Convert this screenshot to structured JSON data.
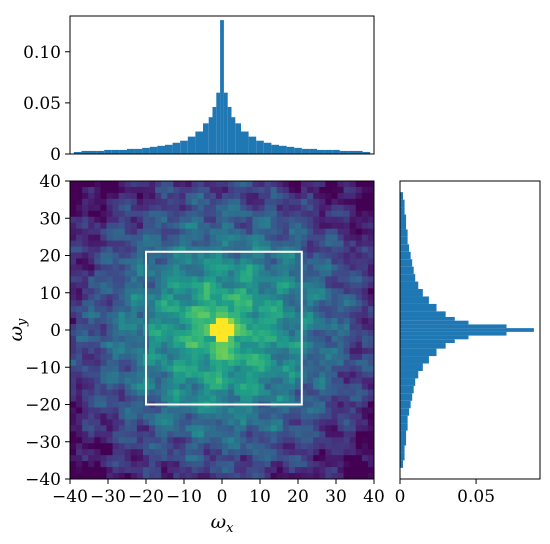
{
  "chart_data": [
    {
      "id": "top_histogram",
      "type": "bar",
      "orientation": "vertical",
      "x_range": [
        -40,
        40
      ],
      "ylim": [
        0,
        0.135
      ],
      "yticks": [
        0,
        0.05,
        0.1
      ],
      "ytick_labels": [
        "0",
        "0.05",
        "0.10"
      ],
      "bin_centers": [
        -38,
        -36,
        -34,
        -32,
        -30,
        -28,
        -26,
        -24,
        -22,
        -20,
        -18,
        -16,
        -14,
        -12,
        -10,
        -8,
        -6,
        -4,
        -3,
        -2,
        -1,
        0,
        1,
        2,
        3,
        4,
        6,
        8,
        10,
        12,
        14,
        16,
        18,
        20,
        22,
        24,
        26,
        28,
        30,
        32,
        34,
        36,
        38
      ],
      "values": [
        0.002,
        0.003,
        0.003,
        0.003,
        0.004,
        0.004,
        0.004,
        0.005,
        0.005,
        0.006,
        0.007,
        0.008,
        0.009,
        0.011,
        0.013,
        0.017,
        0.022,
        0.03,
        0.036,
        0.046,
        0.06,
        0.131,
        0.06,
        0.046,
        0.036,
        0.03,
        0.022,
        0.017,
        0.013,
        0.011,
        0.009,
        0.008,
        0.007,
        0.006,
        0.005,
        0.005,
        0.004,
        0.004,
        0.004,
        0.003,
        0.003,
        0.003,
        0.002
      ],
      "color": "#1f77b4"
    },
    {
      "id": "heatmap",
      "type": "heatmap",
      "xlabel": "ω",
      "xlabel_sub": "x",
      "ylabel": "ω",
      "ylabel_sub": "y",
      "xlim": [
        -40,
        40
      ],
      "ylim": [
        -40,
        40
      ],
      "xticks": [
        -40,
        -30,
        -20,
        -10,
        0,
        10,
        20,
        30,
        40
      ],
      "xtick_labels": [
        "−40",
        "−30",
        "−20",
        "−10",
        "0",
        "10",
        "20",
        "30",
        "40"
      ],
      "yticks": [
        -40,
        -30,
        -20,
        -10,
        0,
        10,
        20,
        30,
        40
      ],
      "ytick_labels": [
        "−40",
        "−30",
        "−20",
        "−10",
        "0",
        "10",
        "20",
        "30",
        "40"
      ],
      "colormap": "viridis",
      "box": {
        "x0": -20,
        "x1": 21,
        "y0": -20,
        "y1": 21,
        "color": "#ffffff"
      }
    },
    {
      "id": "right_histogram",
      "type": "bar",
      "orientation": "horizontal",
      "y_range": [
        -40,
        40
      ],
      "xlim": [
        0,
        0.092
      ],
      "xticks": [
        0,
        0.05
      ],
      "xtick_labels": [
        "0",
        "0.05"
      ],
      "bin_centers": [
        -36,
        -34,
        -32,
        -30,
        -28,
        -26,
        -24,
        -22,
        -20,
        -18,
        -16,
        -14,
        -12,
        -10,
        -8,
        -6,
        -4,
        -3,
        -2,
        -1,
        0,
        1,
        2,
        3,
        4,
        6,
        8,
        10,
        12,
        14,
        16,
        18,
        20,
        22,
        24,
        26,
        28,
        30,
        32,
        34,
        36
      ],
      "values": [
        0.002,
        0.003,
        0.003,
        0.004,
        0.004,
        0.005,
        0.005,
        0.006,
        0.007,
        0.008,
        0.009,
        0.01,
        0.012,
        0.015,
        0.019,
        0.024,
        0.03,
        0.036,
        0.045,
        0.07,
        0.088,
        0.07,
        0.045,
        0.036,
        0.03,
        0.024,
        0.019,
        0.015,
        0.012,
        0.01,
        0.009,
        0.008,
        0.007,
        0.006,
        0.005,
        0.005,
        0.004,
        0.004,
        0.003,
        0.003,
        0.002
      ],
      "color": "#1f77b4"
    }
  ]
}
